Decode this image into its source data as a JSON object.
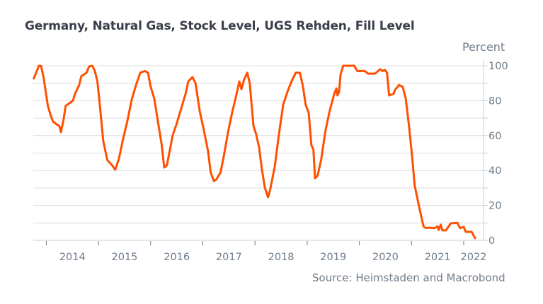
{
  "chart_data": {
    "type": "line",
    "title": "Germany, Natural Gas, Stock Level, UGS Rehden, Fill Level",
    "ylabel": "Percent",
    "xlabel": "",
    "source": "Source: Heimstaden and Macrobond",
    "ylim": [
      0,
      100
    ],
    "xlim": [
      2013.75,
      2022.38
    ],
    "y_ticks": [
      0,
      20,
      40,
      60,
      80,
      100
    ],
    "y_gridlines": [
      0,
      10,
      20,
      30,
      40,
      50,
      60,
      70,
      80,
      90,
      100
    ],
    "x_tick_labels": [
      "2014",
      "2015",
      "2016",
      "2017",
      "2018",
      "2019",
      "2020",
      "2021",
      "2022"
    ],
    "grid": true,
    "line_color": "#ff5000",
    "series": [
      {
        "name": "Fill Level",
        "points": [
          [
            2013.76,
            92.7
          ],
          [
            2013.86,
            100
          ],
          [
            2013.9,
            99.9
          ],
          [
            2013.95,
            93
          ],
          [
            2014.03,
            77
          ],
          [
            2014.09,
            71
          ],
          [
            2014.13,
            68
          ],
          [
            2014.22,
            66
          ],
          [
            2014.25,
            65.6
          ],
          [
            2014.28,
            62
          ],
          [
            2014.33,
            69
          ],
          [
            2014.37,
            77
          ],
          [
            2014.44,
            78.5
          ],
          [
            2014.51,
            80
          ],
          [
            2014.55,
            84
          ],
          [
            2014.63,
            89
          ],
          [
            2014.67,
            94
          ],
          [
            2014.77,
            96
          ],
          [
            2014.82,
            99.6
          ],
          [
            2014.88,
            100
          ],
          [
            2014.93,
            97
          ],
          [
            2014.98,
            91
          ],
          [
            2015.04,
            73
          ],
          [
            2015.09,
            57
          ],
          [
            2015.17,
            46
          ],
          [
            2015.26,
            43
          ],
          [
            2015.32,
            40.5
          ],
          [
            2015.39,
            46.6
          ],
          [
            2015.47,
            58
          ],
          [
            2015.55,
            68
          ],
          [
            2015.64,
            81
          ],
          [
            2015.72,
            89
          ],
          [
            2015.8,
            96
          ],
          [
            2015.89,
            97
          ],
          [
            2015.95,
            96
          ],
          [
            2016.0,
            88
          ],
          [
            2016.07,
            81
          ],
          [
            2016.15,
            66
          ],
          [
            2016.21,
            55
          ],
          [
            2016.26,
            41.7
          ],
          [
            2016.31,
            43
          ],
          [
            2016.37,
            52
          ],
          [
            2016.42,
            60
          ],
          [
            2016.5,
            67
          ],
          [
            2016.58,
            75
          ],
          [
            2016.67,
            84
          ],
          [
            2016.72,
            91
          ],
          [
            2016.8,
            93.5
          ],
          [
            2016.86,
            90
          ],
          [
            2016.94,
            74
          ],
          [
            2017.02,
            63
          ],
          [
            2017.1,
            51
          ],
          [
            2017.15,
            39
          ],
          [
            2017.21,
            34
          ],
          [
            2017.26,
            35
          ],
          [
            2017.34,
            39
          ],
          [
            2017.4,
            48
          ],
          [
            2017.48,
            61.5
          ],
          [
            2017.56,
            73
          ],
          [
            2017.64,
            83
          ],
          [
            2017.7,
            91
          ],
          [
            2017.74,
            86.6
          ],
          [
            2017.79,
            92
          ],
          [
            2017.85,
            96
          ],
          [
            2017.9,
            90
          ],
          [
            2017.97,
            65.6
          ],
          [
            2018.02,
            61
          ],
          [
            2018.08,
            53
          ],
          [
            2018.13,
            41
          ],
          [
            2018.19,
            30
          ],
          [
            2018.25,
            24.7
          ],
          [
            2018.29,
            29
          ],
          [
            2018.38,
            42.5
          ],
          [
            2018.46,
            61
          ],
          [
            2018.54,
            77.7
          ],
          [
            2018.62,
            85
          ],
          [
            2018.7,
            91
          ],
          [
            2018.78,
            96
          ],
          [
            2018.86,
            96
          ],
          [
            2018.92,
            88
          ],
          [
            2018.97,
            77.7
          ],
          [
            2019.03,
            73
          ],
          [
            2019.08,
            54.6
          ],
          [
            2019.12,
            52
          ],
          [
            2019.15,
            35.6
          ],
          [
            2019.2,
            37
          ],
          [
            2019.27,
            46.5
          ],
          [
            2019.35,
            62.7
          ],
          [
            2019.43,
            74
          ],
          [
            2019.52,
            84
          ],
          [
            2019.56,
            87
          ],
          [
            2019.58,
            83
          ],
          [
            2019.61,
            85
          ],
          [
            2019.64,
            95
          ],
          [
            2019.69,
            100
          ],
          [
            2019.9,
            100
          ],
          [
            2019.96,
            97
          ],
          [
            2020.1,
            97
          ],
          [
            2020.17,
            95.5
          ],
          [
            2020.3,
            95.5
          ],
          [
            2020.4,
            98
          ],
          [
            2020.44,
            97
          ],
          [
            2020.49,
            97.6
          ],
          [
            2020.53,
            96
          ],
          [
            2020.57,
            83
          ],
          [
            2020.66,
            84
          ],
          [
            2020.68,
            86
          ],
          [
            2020.76,
            89
          ],
          [
            2020.83,
            88
          ],
          [
            2020.89,
            81
          ],
          [
            2020.95,
            66
          ],
          [
            2021.01,
            48.6
          ],
          [
            2021.06,
            31.6
          ],
          [
            2021.14,
            20
          ],
          [
            2021.23,
            8
          ],
          [
            2021.28,
            7
          ],
          [
            2021.33,
            7.3
          ],
          [
            2021.44,
            7
          ],
          [
            2021.5,
            8
          ],
          [
            2021.52,
            6
          ],
          [
            2021.56,
            9
          ],
          [
            2021.59,
            5.7
          ],
          [
            2021.66,
            5.7
          ],
          [
            2021.75,
            9.7
          ],
          [
            2021.88,
            10
          ],
          [
            2021.93,
            7
          ],
          [
            2022.0,
            7.7
          ],
          [
            2022.04,
            4.9
          ],
          [
            2022.15,
            4.9
          ],
          [
            2022.22,
            1.2
          ]
        ]
      }
    ]
  }
}
